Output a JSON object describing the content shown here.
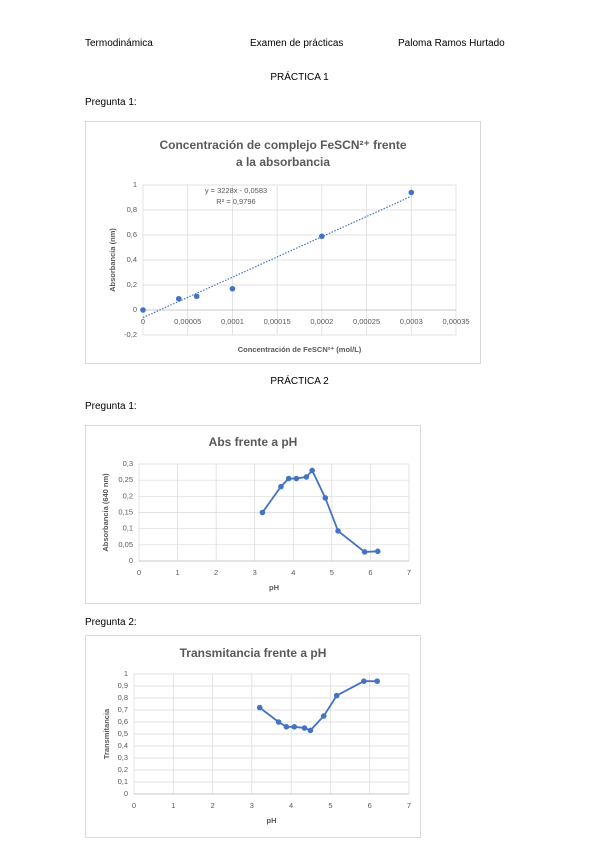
{
  "header": {
    "subject": "Termodinámica",
    "exam": "Examen de prácticas",
    "author": "Paloma Ramos Hurtado"
  },
  "headings": [
    "PRÁCTICA 1",
    "Pregunta 1:",
    "PRÁCTICA 2",
    "Pregunta 1:",
    "Pregunta 2:"
  ],
  "chart_data": [
    {
      "type": "scatter",
      "title": "Concentración de complejo FeSCN²⁺ frente a la absorbancia",
      "x_label": "Concentración de FeSCN²⁺ (mol/L)",
      "y_label": "Absorbancia (nm)",
      "x": [
        0,
        4e-05,
        6e-05,
        0.0001,
        0.0002,
        0.0003
      ],
      "series": [
        {
          "color": "#4472c4",
          "values": [
            0,
            0.09,
            0.11,
            0.17,
            0.59,
            0.94
          ]
        }
      ],
      "trendline": true,
      "annotations": [
        "y = 3228x - 0,0583",
        "R² = 0,9796"
      ],
      "xlim": [
        0,
        0.00035
      ],
      "xticks": [
        0,
        {
          "value": 5e-05,
          "label": "0,00005"
        },
        {
          "value": 0.0001,
          "label": "0,0001"
        },
        {
          "value": 0.00015,
          "label": "0,00015"
        },
        {
          "value": 0.0002,
          "label": "0,0002"
        },
        {
          "value": 0.00025,
          "label": "0,00025"
        },
        {
          "value": 0.0003,
          "label": "0,0003"
        },
        {
          "value": 0.00035,
          "label": "0,00035"
        }
      ],
      "ylim": [
        -0.2,
        1
      ],
      "yticks": [
        {
          "value": -0.2,
          "label": "-0,2"
        },
        0,
        {
          "value": 0.2,
          "label": "0,2"
        },
        {
          "value": 0.4,
          "label": "0,4"
        },
        {
          "value": 0.6,
          "label": "0,6"
        },
        {
          "value": 0.8,
          "label": "0,8"
        },
        1
      ],
      "grid": true
    },
    {
      "type": "line",
      "title": "Abs frente a pH",
      "x_label": "pH",
      "y_label": "Absorbancia (640 nm)",
      "x": [
        3.2,
        3.68,
        3.88,
        4.08,
        4.34,
        4.49,
        4.83,
        5.16,
        5.85,
        6.19
      ],
      "series": [
        {
          "color": "#4472c4",
          "values": [
            0.15,
            0.23,
            0.255,
            0.255,
            0.26,
            0.28,
            0.195,
            0.093,
            0.028,
            0.03
          ]
        }
      ],
      "xlim": [
        0,
        7
      ],
      "xticks": [
        0,
        1,
        2,
        3,
        4,
        5,
        6,
        7
      ],
      "ylim": [
        0,
        0.3
      ],
      "yticks": [
        0,
        {
          "value": 0.05,
          "label": "0,05"
        },
        {
          "value": 0.1,
          "label": "0,1"
        },
        {
          "value": 0.15,
          "label": "0,15"
        },
        {
          "value": 0.2,
          "label": "0,2"
        },
        {
          "value": 0.25,
          "label": "0,25"
        },
        {
          "value": 0.3,
          "label": "0,3"
        }
      ],
      "grid": true
    },
    {
      "type": "line",
      "title": "Transmitancia frente a pH",
      "x_label": "pH",
      "y_label": "Transmitancia",
      "x": [
        3.2,
        3.68,
        3.88,
        4.08,
        4.34,
        4.49,
        4.83,
        5.16,
        5.85,
        6.19
      ],
      "series": [
        {
          "color": "#4472c4",
          "values": [
            0.72,
            0.6,
            0.56,
            0.56,
            0.55,
            0.53,
            0.65,
            0.82,
            0.94,
            0.94
          ]
        }
      ],
      "xlim": [
        0,
        7
      ],
      "xticks": [
        0,
        1,
        2,
        3,
        4,
        5,
        6,
        7
      ],
      "ylim": [
        0,
        1
      ],
      "yticks": [
        0,
        {
          "value": 0.1,
          "label": "0,1"
        },
        {
          "value": 0.2,
          "label": "0,2"
        },
        {
          "value": 0.3,
          "label": "0,3"
        },
        {
          "value": 0.4,
          "label": "0,4"
        },
        {
          "value": 0.5,
          "label": "0,5"
        },
        {
          "value": 0.6,
          "label": "0,6"
        },
        {
          "value": 0.7,
          "label": "0,7"
        },
        {
          "value": 0.8,
          "label": "0,8"
        },
        {
          "value": 0.9,
          "label": "0,9"
        },
        1
      ],
      "grid": true
    }
  ]
}
